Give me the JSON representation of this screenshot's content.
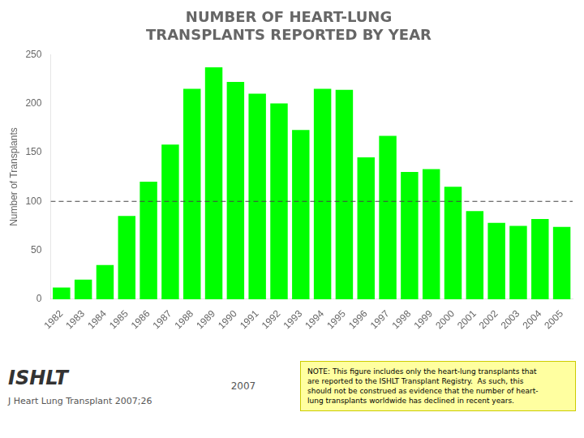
{
  "chart_data": {
    "type": "bar",
    "title": "NUMBER OF HEART-LUNG\nTRANSPLANTS REPORTED BY YEAR",
    "y_label": "Number of Transplants",
    "categories": [
      "1982",
      "1983",
      "1984",
      "1985",
      "1986",
      "1987",
      "1988",
      "1989",
      "1990",
      "1991",
      "1992",
      "1993",
      "1994",
      "1995",
      "1996",
      "1997",
      "1998",
      "1999",
      "2000",
      "2001",
      "2002",
      "2003",
      "2004",
      "2005"
    ],
    "values": [
      12,
      20,
      35,
      85,
      120,
      158,
      215,
      237,
      222,
      210,
      200,
      173,
      215,
      214,
      145,
      167,
      130,
      133,
      115,
      90,
      78,
      75,
      82,
      74
    ],
    "color": "#00FF00",
    "reference_line": 100,
    "ylim": [
      0,
      250
    ],
    "yticks": [
      0,
      50,
      100,
      150,
      200,
      250
    ],
    "grid": false,
    "annotations": [
      "ISHLT",
      "J Heart Lung Transplant 2007;26",
      "2007",
      "NOTE: This figure includes only the heart-lung transplants that\nare reported to the ISHLT Transplant Registry.  As such, this\nshould not be construed as evidence that the number of heart-\nlung transplants worldwide has declined in recent years."
    ]
  }
}
